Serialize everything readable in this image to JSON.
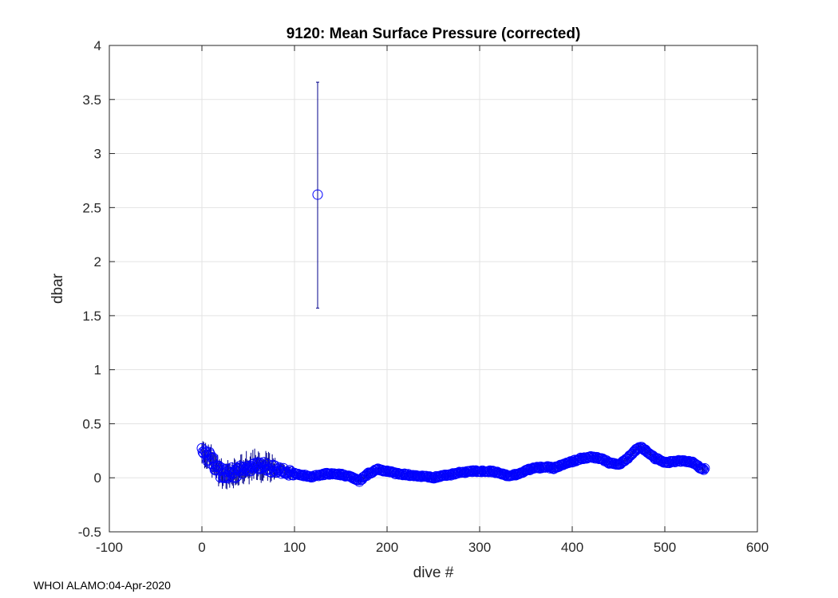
{
  "chart_data": {
    "type": "scatter",
    "title": "9120: Mean Surface Pressure (corrected)",
    "xlabel": "dive #",
    "ylabel": "dbar",
    "xlim": [
      -100,
      600
    ],
    "ylim": [
      -0.5,
      4
    ],
    "xticks": [
      -100,
      0,
      100,
      200,
      300,
      400,
      500,
      600
    ],
    "yticks": [
      -0.5,
      0,
      0.5,
      1,
      1.5,
      2,
      2.5,
      3,
      3.5,
      4
    ],
    "xtick_labels": [
      "-100",
      "0",
      "100",
      "200",
      "300",
      "400",
      "500",
      "600"
    ],
    "ytick_labels": [
      "-0.5",
      "0",
      "0.5",
      "1",
      "1.5",
      "2",
      "2.5",
      "3",
      "3.5",
      "4"
    ],
    "grid": true,
    "marker": "open-circle",
    "series": [
      {
        "name": "mean surface pressure",
        "color": "#0000ff",
        "errorbar_color": "#00008b",
        "trend_knots": {
          "dive": [
            0,
            5,
            10,
            15,
            20,
            30,
            40,
            50,
            60,
            70,
            80,
            90,
            100,
            110,
            120,
            130,
            140,
            150,
            160,
            170,
            180,
            190,
            200,
            210,
            220,
            230,
            240,
            250,
            260,
            270,
            280,
            290,
            300,
            310,
            320,
            330,
            340,
            350,
            360,
            370,
            380,
            390,
            400,
            410,
            420,
            430,
            440,
            450,
            460,
            470,
            475,
            480,
            490,
            500,
            510,
            520,
            530,
            540
          ],
          "value": [
            0.23,
            0.2,
            0.18,
            0.1,
            0.05,
            0.04,
            0.06,
            0.09,
            0.12,
            0.11,
            0.08,
            0.06,
            0.04,
            0.02,
            0.01,
            0.03,
            0.04,
            0.03,
            0.01,
            -0.03,
            0.04,
            0.08,
            0.06,
            0.04,
            0.03,
            0.02,
            0.01,
            0.0,
            0.02,
            0.03,
            0.05,
            0.06,
            0.06,
            0.06,
            0.05,
            0.02,
            0.03,
            0.07,
            0.09,
            0.1,
            0.09,
            0.12,
            0.15,
            0.18,
            0.19,
            0.18,
            0.14,
            0.12,
            0.18,
            0.27,
            0.28,
            0.25,
            0.18,
            0.14,
            0.15,
            0.16,
            0.14,
            0.08
          ]
        },
        "noise_amplitude_by_range": [
          {
            "dive_range": [
              0,
              80
            ],
            "value_jitter": 0.05,
            "error": 0.12
          },
          {
            "dive_range": [
              80,
              100
            ],
            "value_jitter": 0.03,
            "error": 0.06
          },
          {
            "dive_range": [
              100,
              544
            ],
            "value_jitter": 0.008,
            "error": 0.03
          }
        ],
        "dive_count": 544,
        "outlier": {
          "dive": 125,
          "value": 2.62,
          "error_low": 1.57,
          "error_high": 3.66
        }
      }
    ]
  },
  "footer": {
    "label": "WHOI ALAMO:04-Apr-2020"
  }
}
